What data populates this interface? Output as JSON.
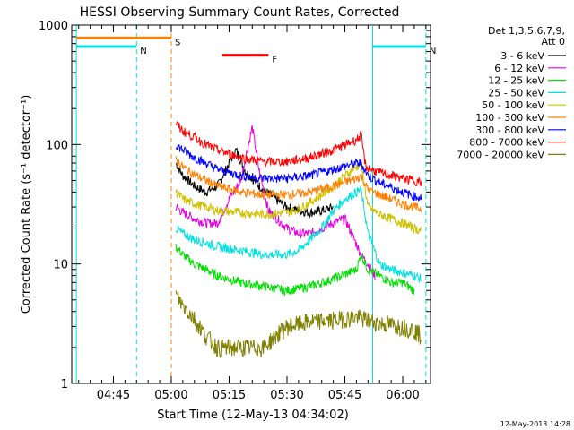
{
  "chart_data": {
    "type": "line",
    "title": "HESSI Observing Summary Count Rates, Corrected",
    "xlabel": "Start Time (12-May-13 04:34:02)",
    "ylabel": "Corrected Count Rate (s⁻¹ detector⁻¹)",
    "footer": "12-May-2013 14:28",
    "y_scale": "log",
    "ylim": [
      1,
      1000
    ],
    "xlim_minutes": [
      4.57,
      6.12
    ],
    "x_ticks": [
      {
        "label": "04:45",
        "t": 4.75
      },
      {
        "label": "05:00",
        "t": 5.0
      },
      {
        "label": "05:15",
        "t": 5.25
      },
      {
        "label": "05:30",
        "t": 5.5
      },
      {
        "label": "05:45",
        "t": 5.75
      },
      {
        "label": "06:00",
        "t": 6.0
      }
    ],
    "y_ticks": [
      {
        "label": "1",
        "v": 1
      },
      {
        "label": "10",
        "v": 10
      },
      {
        "label": "100",
        "v": 100
      },
      {
        "label": "1000",
        "v": 1000
      }
    ],
    "legend": {
      "header": [
        "Det 1,3,5,6,7,9,",
        "Att 0"
      ],
      "position": "right"
    },
    "flags": {
      "saa_label": "S",
      "night_label": "N",
      "flare_label": "F"
    },
    "series": [
      {
        "name": "3 - 6 keV",
        "color": "#000000",
        "points": [
          [
            5.02,
            70
          ],
          [
            5.05,
            55
          ],
          [
            5.1,
            45
          ],
          [
            5.15,
            40
          ],
          [
            5.2,
            45
          ],
          [
            5.25,
            70
          ],
          [
            5.28,
            90
          ],
          [
            5.32,
            60
          ],
          [
            5.38,
            45
          ],
          [
            5.45,
            35
          ],
          [
            5.5,
            30
          ],
          [
            5.55,
            28
          ],
          [
            5.6,
            27
          ],
          [
            5.65,
            28
          ],
          [
            5.7,
            30
          ]
        ]
      },
      {
        "name": "6 - 12 keV",
        "color": "#e000e0",
        "points": [
          [
            5.02,
            30
          ],
          [
            5.05,
            27
          ],
          [
            5.1,
            24
          ],
          [
            5.15,
            22
          ],
          [
            5.2,
            22
          ],
          [
            5.25,
            35
          ],
          [
            5.3,
            50
          ],
          [
            5.35,
            140
          ],
          [
            5.38,
            60
          ],
          [
            5.42,
            28
          ],
          [
            5.5,
            20
          ],
          [
            5.55,
            18
          ],
          [
            5.6,
            18
          ],
          [
            5.65,
            20
          ],
          [
            5.7,
            22
          ],
          [
            5.75,
            24
          ],
          [
            5.82,
            12
          ],
          [
            5.85,
            10
          ],
          [
            5.88,
            8
          ]
        ]
      },
      {
        "name": "12 - 25 keV",
        "color": "#00e000",
        "points": [
          [
            5.02,
            14
          ],
          [
            5.05,
            12
          ],
          [
            5.1,
            10
          ],
          [
            5.15,
            9
          ],
          [
            5.2,
            8
          ],
          [
            5.3,
            7
          ],
          [
            5.4,
            6.5
          ],
          [
            5.5,
            6
          ],
          [
            5.6,
            6.5
          ],
          [
            5.7,
            7.5
          ],
          [
            5.8,
            9
          ],
          [
            5.82,
            12
          ],
          [
            5.85,
            9
          ],
          [
            5.9,
            8
          ],
          [
            5.95,
            7
          ],
          [
            6.0,
            7
          ],
          [
            6.05,
            6
          ]
        ]
      },
      {
        "name": "25 - 50 keV",
        "color": "#00e0e0",
        "points": [
          [
            5.02,
            20
          ],
          [
            5.05,
            18
          ],
          [
            5.1,
            16
          ],
          [
            5.15,
            15
          ],
          [
            5.2,
            14
          ],
          [
            5.3,
            13
          ],
          [
            5.4,
            12
          ],
          [
            5.5,
            12
          ],
          [
            5.55,
            13
          ],
          [
            5.6,
            16
          ],
          [
            5.65,
            20
          ],
          [
            5.7,
            28
          ],
          [
            5.75,
            35
          ],
          [
            5.8,
            40
          ],
          [
            5.82,
            42
          ],
          [
            5.85,
            18
          ],
          [
            5.9,
            10
          ],
          [
            5.95,
            9
          ],
          [
            6.0,
            8.5
          ],
          [
            6.05,
            8
          ],
          [
            6.08,
            7.5
          ]
        ]
      },
      {
        "name": "50 - 100 keV",
        "color": "#d0c000",
        "points": [
          [
            5.02,
            40
          ],
          [
            5.05,
            35
          ],
          [
            5.1,
            32
          ],
          [
            5.15,
            30
          ],
          [
            5.2,
            28
          ],
          [
            5.3,
            27
          ],
          [
            5.4,
            26
          ],
          [
            5.5,
            27
          ],
          [
            5.55,
            29
          ],
          [
            5.6,
            33
          ],
          [
            5.65,
            38
          ],
          [
            5.7,
            45
          ],
          [
            5.75,
            55
          ],
          [
            5.8,
            65
          ],
          [
            5.82,
            70
          ],
          [
            5.85,
            30
          ],
          [
            5.9,
            26
          ],
          [
            5.95,
            24
          ],
          [
            6.0,
            22
          ],
          [
            6.05,
            20
          ],
          [
            6.08,
            19
          ]
        ]
      },
      {
        "name": "100 - 300 keV",
        "color": "#ff8000",
        "points": [
          [
            5.02,
            75
          ],
          [
            5.05,
            65
          ],
          [
            5.1,
            56
          ],
          [
            5.15,
            50
          ],
          [
            5.2,
            45
          ],
          [
            5.3,
            40
          ],
          [
            5.4,
            38
          ],
          [
            5.5,
            38
          ],
          [
            5.6,
            40
          ],
          [
            5.7,
            45
          ],
          [
            5.8,
            52
          ],
          [
            5.82,
            55
          ],
          [
            5.85,
            42
          ],
          [
            5.9,
            38
          ],
          [
            5.95,
            35
          ],
          [
            6.0,
            32
          ],
          [
            6.05,
            30
          ],
          [
            6.08,
            29
          ]
        ]
      },
      {
        "name": "300 - 800 keV",
        "color": "#0000ff",
        "points": [
          [
            5.02,
            100
          ],
          [
            5.05,
            90
          ],
          [
            5.1,
            78
          ],
          [
            5.15,
            70
          ],
          [
            5.2,
            62
          ],
          [
            5.3,
            55
          ],
          [
            5.4,
            52
          ],
          [
            5.5,
            52
          ],
          [
            5.6,
            55
          ],
          [
            5.7,
            62
          ],
          [
            5.8,
            70
          ],
          [
            5.82,
            70
          ],
          [
            5.85,
            55
          ],
          [
            5.9,
            48
          ],
          [
            5.95,
            44
          ],
          [
            6.0,
            40
          ],
          [
            6.05,
            37
          ],
          [
            6.08,
            36
          ]
        ]
      },
      {
        "name": "800 - 7000 keV",
        "color": "#ff0000",
        "points": [
          [
            5.02,
            150
          ],
          [
            5.05,
            130
          ],
          [
            5.1,
            115
          ],
          [
            5.15,
            100
          ],
          [
            5.2,
            90
          ],
          [
            5.3,
            78
          ],
          [
            5.4,
            72
          ],
          [
            5.5,
            72
          ],
          [
            5.6,
            78
          ],
          [
            5.7,
            90
          ],
          [
            5.8,
            110
          ],
          [
            5.82,
            120
          ],
          [
            5.84,
            65
          ],
          [
            5.9,
            58
          ],
          [
            5.95,
            55
          ],
          [
            6.0,
            52
          ],
          [
            6.05,
            50
          ],
          [
            6.08,
            48
          ]
        ]
      },
      {
        "name": "7000 - 20000 keV",
        "color": "#808000",
        "points": [
          [
            5.02,
            5.5
          ],
          [
            5.05,
            4.5
          ],
          [
            5.1,
            3.5
          ],
          [
            5.15,
            2.5
          ],
          [
            5.2,
            2
          ],
          [
            5.3,
            2
          ],
          [
            5.4,
            2
          ],
          [
            5.45,
            2.5
          ],
          [
            5.5,
            3
          ],
          [
            5.6,
            3.3
          ],
          [
            5.7,
            3.4
          ],
          [
            5.8,
            3.6
          ],
          [
            5.9,
            3.2
          ],
          [
            6.0,
            3
          ],
          [
            6.05,
            2.8
          ],
          [
            6.08,
            2.5
          ]
        ]
      }
    ],
    "attenuator_events": [
      {
        "label": "S",
        "t_start": 4.59,
        "t_end": 5.0,
        "color": "#ff8000",
        "v": 780
      },
      {
        "label": "N",
        "t_start": 4.59,
        "t_end": 4.85,
        "color": "#00e0e0",
        "v": 660
      },
      {
        "label": "N",
        "t_start": 5.87,
        "t_end": 6.1,
        "color": "#00e0e0",
        "v": 660
      },
      {
        "label": "F",
        "t_start": 5.22,
        "t_end": 5.42,
        "color": "#ff0000",
        "v": 560
      }
    ],
    "vertical_markers": [
      {
        "t": 4.59,
        "color": "#00e0e0",
        "style": "solid"
      },
      {
        "t": 4.85,
        "color": "#00e0e0",
        "style": "dashed"
      },
      {
        "t": 5.0,
        "color": "#ff8000",
        "style": "dashed"
      },
      {
        "t": 5.87,
        "color": "#00e0e0",
        "style": "solid"
      },
      {
        "t": 6.1,
        "color": "#00e0e0",
        "style": "dashed"
      }
    ]
  }
}
